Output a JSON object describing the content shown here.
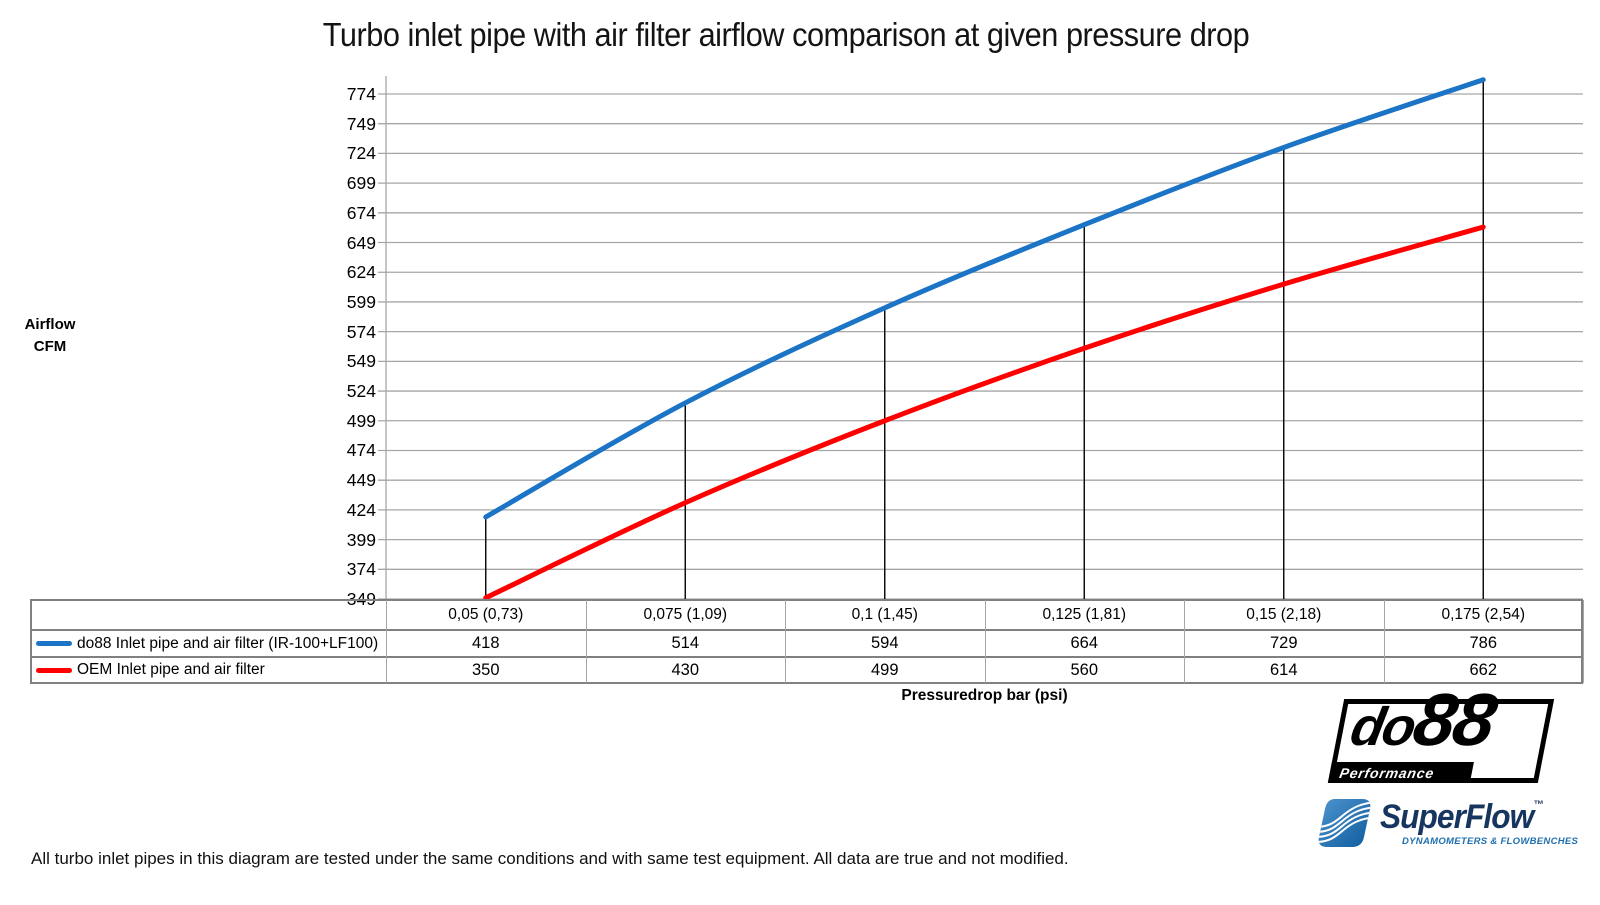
{
  "title": "Turbo inlet pipe with air filter airflow comparison at given pressure drop",
  "chart_data": {
    "type": "line",
    "title": "Turbo inlet pipe with air filter airflow comparison at given pressure drop",
    "x_axis_label": "Pressuredrop bar (psi)",
    "y_axis_label_lines": [
      "Airflow",
      "CFM"
    ],
    "categories": [
      "0,05 (0,73)",
      "0,075 (1,09)",
      "0,1 (1,45)",
      "0,125 (1,81)",
      "0,15 (2,18)",
      "0,175 (2,54)"
    ],
    "series": [
      {
        "name": "do88 Inlet pipe and air filter (IR-100+LF100)",
        "color": "#1B74C5",
        "values": [
          418,
          514,
          594,
          664,
          729,
          786
        ]
      },
      {
        "name": "OEM Inlet pipe and air filter",
        "color": "#FE0000",
        "values": [
          350,
          430,
          499,
          560,
          614,
          662
        ]
      }
    ],
    "y_min": 349,
    "y_max": 774,
    "y_step": 25,
    "y_ticks": [
      774,
      749,
      724,
      699,
      674,
      649,
      624,
      599,
      574,
      549,
      524,
      499,
      474,
      449,
      424,
      399,
      374,
      349
    ],
    "ylim": [
      349,
      799
    ],
    "grid": true,
    "drop_lines": true,
    "smooth": true,
    "legend_position": "data-table-left",
    "gridline_color": "#A6A6A6",
    "drop_line_color": "#000000",
    "table_border_color": "#808080"
  },
  "footer_note": "All turbo inlet pipes in this diagram are tested under the same conditions and with same test equipment. All data are true and not modified.",
  "logos": {
    "do88": {
      "text_do": "do",
      "text_88": "88",
      "subtext": "Performance"
    },
    "superflow": {
      "text": "SuperFlow",
      "tm": "™",
      "subtext": "DYNAMOMETERS & FLOWBENCHES"
    }
  }
}
